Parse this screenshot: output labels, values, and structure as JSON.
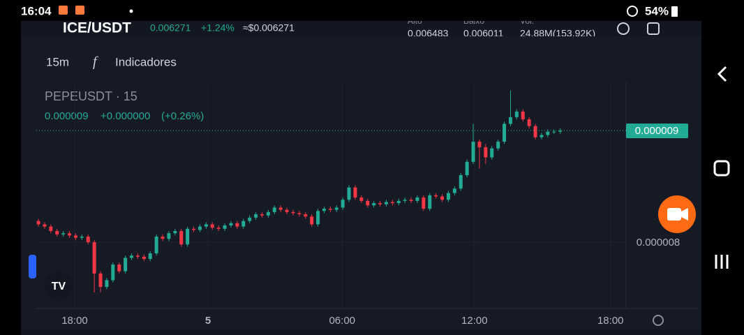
{
  "status_bar": {
    "time": "16:04",
    "battery": "54%"
  },
  "header": {
    "pair": "ICE/USDT",
    "price": "0.006271",
    "change": "+1.24%",
    "usd_price": "≈$0.006271",
    "stats": [
      {
        "label": "Alto",
        "value": "0.006483"
      },
      {
        "label": "Baixo",
        "value": "0.006011"
      },
      {
        "label": "Vol.",
        "value": "24.88M(153.92K)"
      }
    ]
  },
  "toolbar": {
    "interval": "15m",
    "indicators": "Indicadores"
  },
  "chart_data": {
    "type": "candlestick",
    "title": "PEPEUSDT · 15",
    "legend": {
      "price": "0.000009",
      "change": "+0.000000",
      "change_pct": "(+0.26%)"
    },
    "up_color": "#22ab94",
    "down_color": "#f23645",
    "grid": true,
    "ylim": [
      7.419e-06,
      9.419e-06
    ],
    "yticks": [
      {
        "value": 8e-06,
        "label": "0.000008"
      }
    ],
    "last_price": {
      "value": 9e-06,
      "label": "0.000009"
    },
    "xlim": [
      -0.34,
      94.6
    ],
    "xticks": [
      {
        "value": 5.84,
        "label": "18:00"
      },
      {
        "value": 27.3,
        "label": "5"
      },
      {
        "value": 48.9,
        "label": "06:00"
      },
      {
        "value": 70.2,
        "label": "12:00"
      },
      {
        "value": 92.1,
        "label": "18:00"
      }
    ],
    "candles": [
      [
        8.19e-06,
        8.21e-06,
        8.14e-06,
        8.16e-06
      ],
      [
        8.16e-06,
        8.18e-06,
        8.12e-06,
        8.14e-06
      ],
      [
        8.14e-06,
        8.16e-06,
        8.08e-06,
        8.1e-06
      ],
      [
        8.1e-06,
        8.12e-06,
        8.05e-06,
        8.07e-06
      ],
      [
        8.07e-06,
        8.1e-06,
        8.05e-06,
        8.08e-06
      ],
      [
        8.08e-06,
        8.1e-06,
        8.04e-06,
        8.06e-06
      ],
      [
        8.06e-06,
        8.08e-06,
        8.02e-06,
        8.04e-06
      ],
      [
        8.04e-06,
        8.07e-06,
        8.02e-06,
        8.05e-06
      ],
      [
        8.05e-06,
        8.07e-06,
        7.98e-06,
        8e-06
      ],
      [
        8e-06,
        8.02e-06,
        7.55e-06,
        7.72e-06
      ],
      [
        7.72e-06,
        7.74e-06,
        7.55e-06,
        7.6e-06
      ],
      [
        7.6e-06,
        7.68e-06,
        7.58e-06,
        7.66e-06
      ],
      [
        7.66e-06,
        7.82e-06,
        7.64e-06,
        7.8e-06
      ],
      [
        7.8e-06,
        7.82e-06,
        7.72e-06,
        7.74e-06
      ],
      [
        7.74e-06,
        7.88e-06,
        7.72e-06,
        7.86e-06
      ],
      [
        7.86e-06,
        7.9e-06,
        7.84e-06,
        7.88e-06
      ],
      [
        7.88e-06,
        7.9e-06,
        7.85e-06,
        7.87e-06
      ],
      [
        7.87e-06,
        7.89e-06,
        7.83e-06,
        7.85e-06
      ],
      [
        7.85e-06,
        7.92e-06,
        7.83e-06,
        7.9e-06
      ],
      [
        7.9e-06,
        8.07e-06,
        7.88e-06,
        8.05e-06
      ],
      [
        8.05e-06,
        8.07e-06,
        8.01e-06,
        8.03e-06
      ],
      [
        8.03e-06,
        8.1e-06,
        8.01e-06,
        8.08e-06
      ],
      [
        8.08e-06,
        8.12e-06,
        8.06e-06,
        8.1e-06
      ],
      [
        8.1e-06,
        8.12e-06,
        7.96e-06,
        7.98e-06
      ],
      [
        7.98e-06,
        8.14e-06,
        7.96e-06,
        8.12e-06
      ],
      [
        8.12e-06,
        8.14e-06,
        8.09e-06,
        8.11e-06
      ],
      [
        8.11e-06,
        8.16e-06,
        8.09e-06,
        8.14e-06
      ],
      [
        8.14e-06,
        8.18e-06,
        8.12e-06,
        8.16e-06
      ],
      [
        8.16e-06,
        8.18e-06,
        8.11e-06,
        8.13e-06
      ],
      [
        8.13e-06,
        8.15e-06,
        8.1e-06,
        8.12e-06
      ],
      [
        8.12e-06,
        8.17e-06,
        8.1e-06,
        8.15e-06
      ],
      [
        8.15e-06,
        8.19e-06,
        8.13e-06,
        8.17e-06
      ],
      [
        8.17e-06,
        8.19e-06,
        8.12e-06,
        8.14e-06
      ],
      [
        8.14e-06,
        8.21e-06,
        8.12e-06,
        8.19e-06
      ],
      [
        8.19e-06,
        8.24e-06,
        8.17e-06,
        8.22e-06
      ],
      [
        8.22e-06,
        8.27e-06,
        8.2e-06,
        8.25e-06
      ],
      [
        8.25e-06,
        8.27e-06,
        8.22e-06,
        8.24e-06
      ],
      [
        8.24e-06,
        8.29e-06,
        8.22e-06,
        8.27e-06
      ],
      [
        8.27e-06,
        8.33e-06,
        8.25e-06,
        8.31e-06
      ],
      [
        8.31e-06,
        8.33e-06,
        8.27e-06,
        8.29e-06
      ],
      [
        8.29e-06,
        8.31e-06,
        8.25e-06,
        8.27e-06
      ],
      [
        8.27e-06,
        8.29e-06,
        8.24e-06,
        8.26e-06
      ],
      [
        8.26e-06,
        8.28e-06,
        8.23e-06,
        8.25e-06
      ],
      [
        8.25e-06,
        8.27e-06,
        8.21e-06,
        8.23e-06
      ],
      [
        8.23e-06,
        8.25e-06,
        8.14e-06,
        8.16e-06
      ],
      [
        8.16e-06,
        8.3e-06,
        8.14e-06,
        8.28e-06
      ],
      [
        8.28e-06,
        8.32e-06,
        8.26e-06,
        8.3e-06
      ],
      [
        8.3e-06,
        8.32e-06,
        8.27e-06,
        8.29e-06
      ],
      [
        8.29e-06,
        8.33e-06,
        8.27e-06,
        8.31e-06
      ],
      [
        8.31e-06,
        8.4e-06,
        8.29e-06,
        8.38e-06
      ],
      [
        8.38e-06,
        8.51e-06,
        8.36e-06,
        8.49e-06
      ],
      [
        8.49e-06,
        8.51e-06,
        8.38e-06,
        8.4e-06
      ],
      [
        8.4e-06,
        8.42e-06,
        8.35e-06,
        8.37e-06
      ],
      [
        8.37e-06,
        8.39e-06,
        8.31e-06,
        8.33e-06
      ],
      [
        8.33e-06,
        8.37e-06,
        8.31e-06,
        8.35e-06
      ],
      [
        8.35e-06,
        8.37e-06,
        8.32e-06,
        8.34e-06
      ],
      [
        8.34e-06,
        8.38e-06,
        8.32e-06,
        8.36e-06
      ],
      [
        8.36e-06,
        8.38e-06,
        8.33e-06,
        8.35e-06
      ],
      [
        8.35e-06,
        8.39e-06,
        8.33e-06,
        8.37e-06
      ],
      [
        8.37e-06,
        8.4e-06,
        8.35e-06,
        8.38e-06
      ],
      [
        8.38e-06,
        8.4e-06,
        8.35e-06,
        8.37e-06
      ],
      [
        8.37e-06,
        8.42e-06,
        8.35e-06,
        8.4e-06
      ],
      [
        8.4e-06,
        8.42e-06,
        8.28e-06,
        8.3e-06
      ],
      [
        8.3e-06,
        8.44e-06,
        8.28e-06,
        8.42e-06
      ],
      [
        8.42e-06,
        8.44e-06,
        8.39e-06,
        8.41e-06
      ],
      [
        8.41e-06,
        8.43e-06,
        8.36e-06,
        8.38e-06
      ],
      [
        8.38e-06,
        8.46e-06,
        8.36e-06,
        8.44e-06
      ],
      [
        8.44e-06,
        8.5e-06,
        8.42e-06,
        8.48e-06
      ],
      [
        8.48e-06,
        8.62e-06,
        8.46e-06,
        8.6e-06
      ],
      [
        8.6e-06,
        8.74e-06,
        8.58e-06,
        8.72e-06
      ],
      [
        8.72e-06,
        9.06e-06,
        8.7e-06,
        8.9e-06
      ],
      [
        8.9e-06,
        8.92e-06,
        8.66e-06,
        8.85e-06
      ],
      [
        8.85e-06,
        8.88e-06,
        8.7e-06,
        8.76e-06
      ],
      [
        8.76e-06,
        8.86e-06,
        8.74e-06,
        8.84e-06
      ],
      [
        8.84e-06,
        8.92e-06,
        8.82e-06,
        8.9e-06
      ],
      [
        8.9e-06,
        9.08e-06,
        8.88e-06,
        9.06e-06
      ],
      [
        9.06e-06,
        9.36e-06,
        9.04e-06,
        9.12e-06
      ],
      [
        9.12e-06,
        9.19e-06,
        9.1e-06,
        9.17e-06
      ],
      [
        9.17e-06,
        9.19e-06,
        9.08e-06,
        9.1e-06
      ],
      [
        9.1e-06,
        9.12e-06,
        9.02e-06,
        9.04e-06
      ],
      [
        9.04e-06,
        9.06e-06,
        8.92e-06,
        8.94e-06
      ],
      [
        8.94e-06,
        8.98e-06,
        8.92e-06,
        8.96e-06
      ],
      [
        8.96e-06,
        9.01e-06,
        8.94e-06,
        8.99e-06
      ],
      [
        8.99e-06,
        9.01e-06,
        8.97e-06,
        8.99e-06
      ],
      [
        8.99e-06,
        9.02e-06,
        8.97e-06,
        9e-06
      ]
    ]
  }
}
